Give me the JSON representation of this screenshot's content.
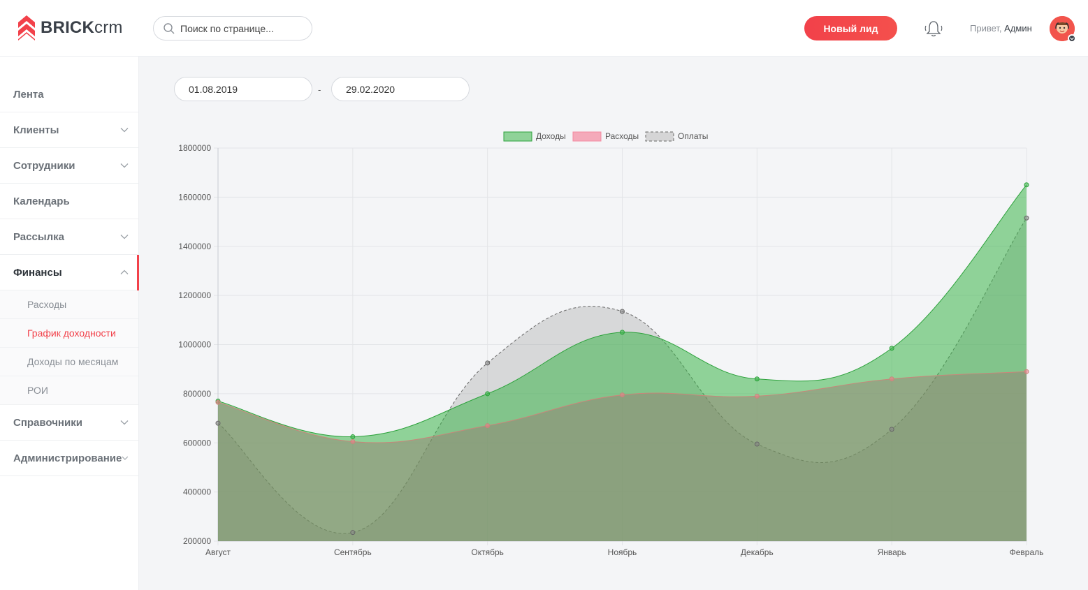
{
  "header": {
    "logo_bold": "BRICK",
    "logo_light": "crm",
    "search_placeholder": "Поиск по странице...",
    "new_lead_label": "Новый лид",
    "greeting": "Привет,",
    "user_name": "Админ"
  },
  "sidebar": {
    "items": [
      {
        "label": "Лента",
        "has_chevron": false
      },
      {
        "label": "Клиенты",
        "has_chevron": true
      },
      {
        "label": "Сотрудники",
        "has_chevron": true
      },
      {
        "label": "Календарь",
        "has_chevron": false
      },
      {
        "label": "Рассылка",
        "has_chevron": true
      },
      {
        "label": "Финансы",
        "has_chevron": true,
        "expanded": true,
        "active": true
      }
    ],
    "finance_sub": [
      {
        "label": "Расходы"
      },
      {
        "label": "График доходности",
        "active": true
      },
      {
        "label": "Доходы по месяцам"
      },
      {
        "label": "РОИ"
      }
    ],
    "items_after": [
      {
        "label": "Справочники",
        "has_chevron": true
      },
      {
        "label": "Администрирование",
        "has_chevron": true
      }
    ]
  },
  "filters": {
    "date_from": "01.08.2019",
    "separator": "-",
    "date_to": "29.02.2020"
  },
  "colors": {
    "accent": "#f2414a",
    "income": "#3cb54a",
    "expenses": "#f48aa0",
    "payments": "#9e9e9e"
  },
  "chart_data": {
    "type": "area",
    "categories": [
      "Август",
      "Сентябрь",
      "Октябрь",
      "Ноябрь",
      "Декабрь",
      "Январь",
      "Февраль"
    ],
    "ylim": [
      200000,
      1800000
    ],
    "yticks": [
      "200000",
      "400000",
      "600000",
      "800000",
      "1000000",
      "1200000",
      "1400000",
      "1600000",
      "1800000"
    ],
    "legend_position": "top",
    "grid": true,
    "series": [
      {
        "name": "Доходы",
        "values": [
          770000,
          625000,
          800000,
          1050000,
          860000,
          985000,
          1650000
        ]
      },
      {
        "name": "Расходы",
        "values": [
          765000,
          605000,
          670000,
          795000,
          790000,
          860000,
          890000
        ]
      },
      {
        "name": "Оплаты",
        "values": [
          680000,
          235000,
          925000,
          1135000,
          595000,
          655000,
          1515000
        ]
      }
    ]
  }
}
